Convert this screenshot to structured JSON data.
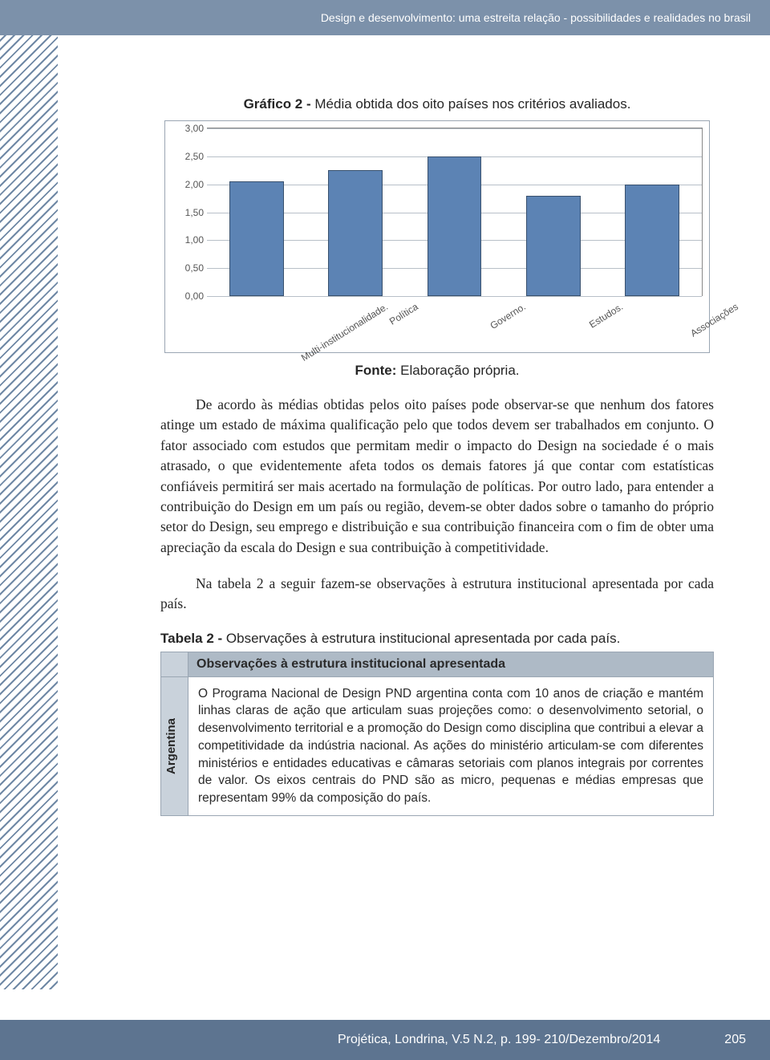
{
  "header": {
    "running_title": "Design e desenvolvimento: uma estreita relação - possibilidades e realidades no brasil"
  },
  "chart": {
    "title_label": "Gráfico 2 - ",
    "title_text": "Média obtida dos oito países nos critérios avaliados.",
    "type": "bar",
    "ylim": [
      0,
      3.0
    ],
    "ytick_step": 0.5,
    "yticks": [
      "0,00",
      "0,50",
      "1,00",
      "1,50",
      "2,00",
      "2,50",
      "3,00"
    ],
    "categories": [
      "Multi-institucionalidade.",
      "Política",
      "Governo.",
      "Estudos.",
      "Associações"
    ],
    "values": [
      2.05,
      2.25,
      2.5,
      1.8,
      2.0
    ],
    "bar_color": "#5c83b4",
    "bar_border": "#39516e",
    "grid_color": "#b8c0c8",
    "plot_border": "#888888",
    "bar_width_pct": 11,
    "gap_pct": 9,
    "label_fontsize": 12,
    "label_rotation_deg": -32,
    "fonte_label": "Fonte: ",
    "fonte_text": "Elaboração própria."
  },
  "paragraphs": {
    "p1": "De acordo às médias obtidas pelos oito países pode observar-se que nenhum dos fatores atinge um estado de máxima qualificação pelo que todos devem ser trabalhados em conjunto. O fator associado com estudos que permitam medir o impacto do Design na sociedade é o mais atrasado, o que evidentemente afeta todos os demais fatores já que contar com estatísticas confiáveis permitirá ser mais acertado na formulação de políticas. Por outro lado, para entender a contribuição do Design em um país ou região, devem-se obter dados sobre o tamanho do próprio setor do Design, seu emprego e distribuição e sua contribuição financeira com o fim de obter uma apreciação da escala do Design e sua contribuição à competitividade.",
    "p2": "Na tabela 2 a seguir fazem-se observações à estrutura institucional apresentada por cada país."
  },
  "table": {
    "title_label": "Tabela 2 - ",
    "title_text": "Observações à estrutura institucional apresentada por cada país.",
    "header": "Observações à estrutura institucional apresentada",
    "rows": [
      {
        "country": "Argentina",
        "text": "O Programa Nacional de Design PND argentina conta com 10 anos de criação e mantém linhas claras de ação que articulam suas projeções como: o desenvolvimento setorial, o desenvolvimento territorial e a promoção do Design como disciplina que contribui a elevar a competitividade da indústria nacional. As ações do ministério articulam-se com diferentes ministérios e entidades educativas e câmaras setoriais com planos integrais por correntes de valor. Os eixos centrais do PND são as micro, pequenas e médias empresas que representam 99% da composição do país."
      }
    ]
  },
  "footer": {
    "citation": "Projética, Londrina, V.5 N.2, p. 199- 210/Dezembro/2014",
    "page": "205"
  },
  "colors": {
    "header_bg": "#7c91aa",
    "footer_bg": "#5d7490",
    "stripe": "#6f88a5",
    "table_header_bg": "#aebac6",
    "table_side_bg": "#c9d2db",
    "border": "#9aa6b3"
  }
}
